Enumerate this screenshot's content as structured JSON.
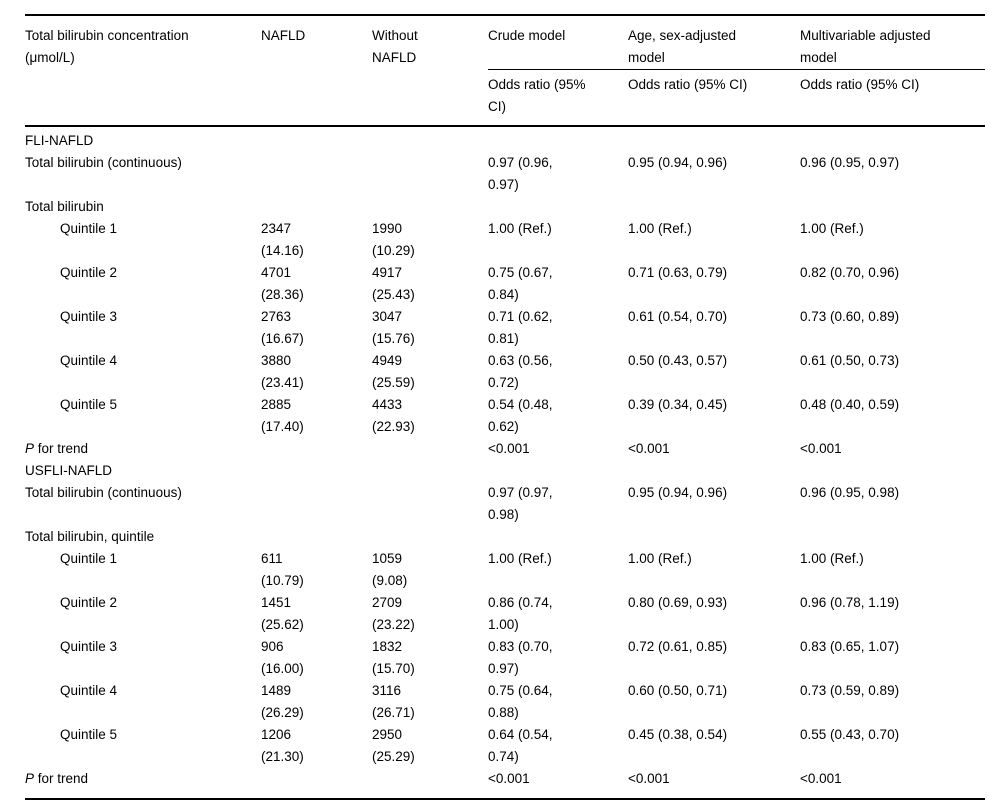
{
  "header": {
    "col1": "Total bilirubin concentration\n(μmol/L)",
    "col2": "NAFLD",
    "col3": "Without\nNAFLD",
    "models": [
      "Crude model",
      "Age, sex-adjusted\nmodel",
      "Multivariable adjusted\nmodel"
    ],
    "subheaders": [
      "Odds ratio (95%\nCI)",
      "Odds ratio (95% CI)",
      "Odds ratio (95% CI)"
    ]
  },
  "sections": [
    {
      "title": "FLI-NAFLD",
      "continuous": {
        "label": "Total bilirubin (continuous)",
        "crude": "0.97 (0.96,\n0.97)",
        "age_sex": "0.95 (0.94, 0.96)",
        "multivariable": "0.96 (0.95, 0.97)"
      },
      "group_label": "Total bilirubin",
      "quintiles": [
        {
          "label": "Quintile 1",
          "nafld": "2347\n(14.16)",
          "without_nafld": "1990\n(10.29)",
          "crude": "1.00 (Ref.)",
          "age_sex": "1.00 (Ref.)",
          "multivariable": "1.00 (Ref.)"
        },
        {
          "label": "Quintile 2",
          "nafld": "4701\n(28.36)",
          "without_nafld": "4917\n(25.43)",
          "crude": "0.75 (0.67,\n0.84)",
          "age_sex": "0.71 (0.63, 0.79)",
          "multivariable": "0.82 (0.70, 0.96)"
        },
        {
          "label": "Quintile 3",
          "nafld": "2763\n(16.67)",
          "without_nafld": "3047\n(15.76)",
          "crude": "0.71 (0.62,\n0.81)",
          "age_sex": "0.61 (0.54, 0.70)",
          "multivariable": "0.73 (0.60, 0.89)"
        },
        {
          "label": "Quintile 4",
          "nafld": "3880\n(23.41)",
          "without_nafld": "4949\n(25.59)",
          "crude": "0.63 (0.56,\n0.72)",
          "age_sex": "0.50 (0.43, 0.57)",
          "multivariable": "0.61 (0.50, 0.73)"
        },
        {
          "label": "Quintile 5",
          "nafld": "2885\n(17.40)",
          "without_nafld": "4433\n(22.93)",
          "crude": "0.54 (0.48,\n0.62)",
          "age_sex": "0.39 (0.34, 0.45)",
          "multivariable": "0.48 (0.40, 0.59)"
        }
      ],
      "p_for_trend": {
        "label_italic": "P",
        "label_rest": " for trend",
        "crude": "<0.001",
        "age_sex": "<0.001",
        "multivariable": "<0.001"
      }
    },
    {
      "title": "USFLI-NAFLD",
      "continuous": {
        "label": "Total bilirubin (continuous)",
        "crude": "0.97 (0.97,\n0.98)",
        "age_sex": "0.95 (0.94, 0.96)",
        "multivariable": "0.96 (0.95, 0.98)"
      },
      "group_label": "Total bilirubin, quintile",
      "quintiles": [
        {
          "label": "Quintile 1",
          "nafld": "611\n(10.79)",
          "without_nafld": "1059\n(9.08)",
          "crude": "1.00 (Ref.)",
          "age_sex": "1.00 (Ref.)",
          "multivariable": "1.00 (Ref.)"
        },
        {
          "label": "Quintile 2",
          "nafld": "1451\n(25.62)",
          "without_nafld": "2709\n(23.22)",
          "crude": "0.86 (0.74,\n1.00)",
          "age_sex": "0.80 (0.69, 0.93)",
          "multivariable": "0.96 (0.78, 1.19)"
        },
        {
          "label": "Quintile 3",
          "nafld": "906\n(16.00)",
          "without_nafld": "1832\n(15.70)",
          "crude": "0.83 (0.70,\n0.97)",
          "age_sex": "0.72 (0.61, 0.85)",
          "multivariable": "0.83 (0.65, 1.07)"
        },
        {
          "label": "Quintile 4",
          "nafld": "1489\n(26.29)",
          "without_nafld": "3116\n(26.71)",
          "crude": "0.75 (0.64,\n0.88)",
          "age_sex": "0.60 (0.50, 0.71)",
          "multivariable": "0.73 (0.59, 0.89)"
        },
        {
          "label": "Quintile 5",
          "nafld": "1206\n(21.30)",
          "without_nafld": "2950\n(25.29)",
          "crude": "0.64 (0.54,\n0.74)",
          "age_sex": "0.45 (0.38, 0.54)",
          "multivariable": "0.55 (0.43, 0.70)"
        }
      ],
      "p_for_trend": {
        "label_italic": "P",
        "label_rest": " for trend",
        "crude": "<0.001",
        "age_sex": "<0.001",
        "multivariable": "<0.001"
      }
    }
  ],
  "colors": {
    "text": "#000000",
    "rule": "#000000",
    "background": "#ffffff"
  }
}
